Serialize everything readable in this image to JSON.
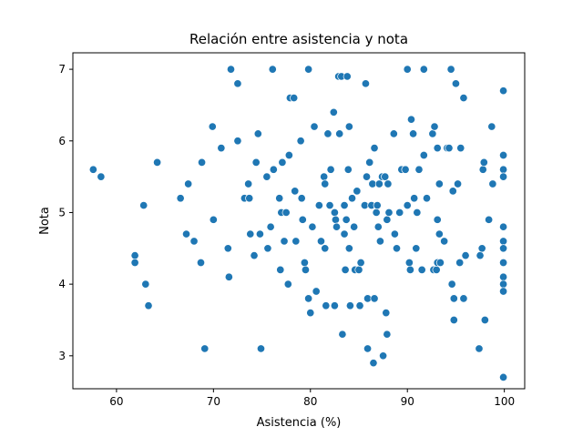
{
  "chart_data": {
    "type": "scatter",
    "title": "Relación entre asistencia y nota",
    "xlabel": "Asistencia (%)",
    "ylabel": "Nota",
    "xlim": [
      55.5,
      102.1
    ],
    "ylim": [
      2.54,
      7.23
    ],
    "xticks": [
      60,
      70,
      80,
      90,
      100
    ],
    "yticks": [
      3,
      4,
      5,
      6,
      7
    ],
    "grid": false,
    "color": "#1f77b4",
    "points": [
      [
        57.6,
        5.6
      ],
      [
        58.4,
        5.5
      ],
      [
        61.9,
        4.4
      ],
      [
        61.9,
        4.3
      ],
      [
        62.8,
        5.1
      ],
      [
        63.0,
        4.0
      ],
      [
        63.3,
        3.7
      ],
      [
        64.2,
        5.7
      ],
      [
        66.6,
        5.2
      ],
      [
        67.2,
        4.7
      ],
      [
        67.4,
        5.4
      ],
      [
        68.0,
        4.6
      ],
      [
        68.7,
        4.3
      ],
      [
        68.8,
        5.7
      ],
      [
        69.1,
        3.1
      ],
      [
        69.9,
        6.2
      ],
      [
        70.0,
        4.9
      ],
      [
        70.8,
        5.9
      ],
      [
        71.5,
        4.5
      ],
      [
        71.6,
        4.1
      ],
      [
        71.8,
        7.0
      ],
      [
        72.5,
        6.8
      ],
      [
        72.5,
        6.0
      ],
      [
        73.2,
        5.2
      ],
      [
        73.6,
        5.4
      ],
      [
        73.7,
        5.2
      ],
      [
        73.8,
        4.7
      ],
      [
        74.2,
        4.4
      ],
      [
        74.4,
        5.7
      ],
      [
        74.6,
        6.1
      ],
      [
        74.8,
        4.7
      ],
      [
        74.9,
        3.1
      ],
      [
        75.5,
        5.5
      ],
      [
        75.6,
        4.5
      ],
      [
        75.9,
        4.8
      ],
      [
        76.1,
        7.0
      ],
      [
        76.2,
        5.6
      ],
      [
        76.8,
        5.2
      ],
      [
        76.9,
        4.2
      ],
      [
        77.0,
        5.0
      ],
      [
        77.1,
        5.7
      ],
      [
        77.3,
        4.6
      ],
      [
        77.5,
        5.0
      ],
      [
        77.7,
        4.0
      ],
      [
        77.8,
        5.8
      ],
      [
        77.9,
        6.6
      ],
      [
        78.3,
        6.6
      ],
      [
        78.4,
        5.3
      ],
      [
        78.5,
        4.6
      ],
      [
        79.0,
        6.0
      ],
      [
        79.1,
        5.2
      ],
      [
        79.2,
        4.9
      ],
      [
        79.4,
        4.3
      ],
      [
        79.5,
        4.2
      ],
      [
        79.8,
        7.0
      ],
      [
        79.8,
        3.8
      ],
      [
        80.0,
        3.6
      ],
      [
        80.2,
        4.8
      ],
      [
        80.4,
        6.2
      ],
      [
        80.6,
        3.9
      ],
      [
        80.9,
        5.1
      ],
      [
        81.1,
        4.6
      ],
      [
        81.4,
        5.5
      ],
      [
        81.5,
        4.5
      ],
      [
        81.5,
        5.4
      ],
      [
        81.6,
        3.7
      ],
      [
        81.8,
        6.1
      ],
      [
        82.0,
        5.1
      ],
      [
        82.1,
        5.6
      ],
      [
        82.4,
        6.4
      ],
      [
        82.5,
        5.0
      ],
      [
        82.5,
        3.7
      ],
      [
        82.6,
        4.9
      ],
      [
        82.7,
        4.8
      ],
      [
        82.9,
        6.9
      ],
      [
        83.0,
        6.1
      ],
      [
        83.2,
        6.9
      ],
      [
        83.3,
        3.3
      ],
      [
        83.5,
        5.1
      ],
      [
        83.5,
        4.7
      ],
      [
        83.6,
        4.2
      ],
      [
        83.7,
        4.9
      ],
      [
        83.8,
        6.9
      ],
      [
        83.9,
        5.6
      ],
      [
        84.0,
        6.2
      ],
      [
        84.0,
        4.5
      ],
      [
        84.1,
        3.7
      ],
      [
        84.3,
        5.2
      ],
      [
        84.5,
        4.8
      ],
      [
        84.6,
        4.2
      ],
      [
        84.8,
        5.3
      ],
      [
        85.0,
        4.2
      ],
      [
        85.1,
        3.7
      ],
      [
        85.2,
        4.3
      ],
      [
        85.6,
        5.1
      ],
      [
        85.7,
        6.8
      ],
      [
        85.8,
        5.5
      ],
      [
        85.9,
        3.8
      ],
      [
        85.9,
        3.1
      ],
      [
        86.1,
        5.7
      ],
      [
        86.3,
        5.1
      ],
      [
        86.4,
        5.4
      ],
      [
        86.5,
        2.9
      ],
      [
        86.6,
        5.9
      ],
      [
        86.6,
        3.8
      ],
      [
        86.8,
        5.0
      ],
      [
        86.9,
        5.1
      ],
      [
        87.0,
        4.8
      ],
      [
        87.1,
        5.4
      ],
      [
        87.2,
        4.6
      ],
      [
        87.4,
        5.5
      ],
      [
        87.5,
        3.0
      ],
      [
        87.7,
        5.5
      ],
      [
        87.8,
        3.6
      ],
      [
        87.9,
        4.9
      ],
      [
        87.9,
        3.3
      ],
      [
        88.0,
        5.4
      ],
      [
        88.1,
        5.0
      ],
      [
        88.6,
        6.1
      ],
      [
        88.7,
        4.7
      ],
      [
        88.9,
        4.5
      ],
      [
        89.2,
        5.0
      ],
      [
        89.4,
        5.6
      ],
      [
        89.8,
        5.6
      ],
      [
        90.0,
        5.1
      ],
      [
        90.0,
        7.0
      ],
      [
        90.2,
        4.3
      ],
      [
        90.3,
        4.2
      ],
      [
        90.4,
        6.3
      ],
      [
        90.6,
        6.1
      ],
      [
        90.7,
        5.2
      ],
      [
        90.9,
        4.5
      ],
      [
        91.0,
        5.0
      ],
      [
        91.2,
        5.6
      ],
      [
        91.5,
        4.2
      ],
      [
        91.7,
        7.0
      ],
      [
        91.7,
        5.8
      ],
      [
        92.0,
        5.2
      ],
      [
        92.6,
        6.1
      ],
      [
        92.7,
        4.2
      ],
      [
        92.8,
        6.2
      ],
      [
        93.0,
        4.2
      ],
      [
        93.1,
        5.9
      ],
      [
        93.1,
        4.9
      ],
      [
        93.1,
        4.3
      ],
      [
        93.3,
        5.4
      ],
      [
        93.3,
        4.7
      ],
      [
        93.4,
        4.3
      ],
      [
        93.8,
        4.6
      ],
      [
        94.1,
        5.9
      ],
      [
        94.3,
        5.9
      ],
      [
        94.5,
        7.0
      ],
      [
        94.6,
        4.0
      ],
      [
        94.7,
        5.3
      ],
      [
        94.8,
        3.5
      ],
      [
        94.8,
        3.8
      ],
      [
        95.0,
        6.8
      ],
      [
        95.2,
        5.4
      ],
      [
        95.4,
        4.3
      ],
      [
        95.5,
        5.9
      ],
      [
        95.8,
        6.6
      ],
      [
        95.8,
        3.8
      ],
      [
        96.0,
        4.4
      ],
      [
        97.4,
        3.1
      ],
      [
        97.5,
        4.4
      ],
      [
        97.7,
        4.5
      ],
      [
        97.8,
        5.6
      ],
      [
        97.9,
        5.7
      ],
      [
        98.0,
        3.5
      ],
      [
        98.4,
        4.9
      ],
      [
        98.7,
        6.2
      ],
      [
        98.8,
        5.4
      ],
      [
        99.9,
        6.7
      ],
      [
        99.9,
        5.8
      ],
      [
        99.9,
        5.6
      ],
      [
        99.9,
        5.5
      ],
      [
        99.9,
        4.8
      ],
      [
        99.9,
        4.6
      ],
      [
        99.9,
        4.5
      ],
      [
        99.9,
        4.3
      ],
      [
        99.9,
        4.1
      ],
      [
        99.9,
        4.0
      ],
      [
        99.9,
        3.9
      ],
      [
        99.9,
        2.7
      ]
    ]
  }
}
